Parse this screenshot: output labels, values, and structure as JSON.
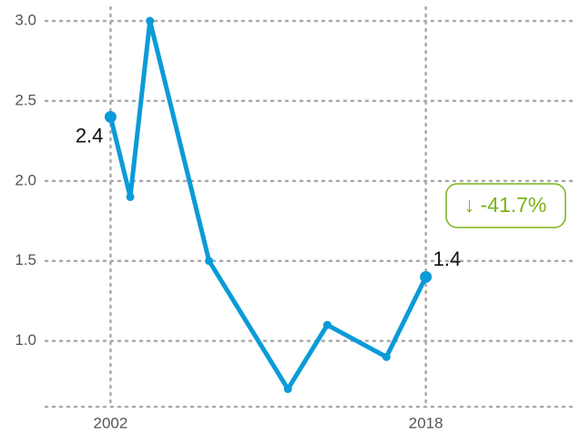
{
  "chart_data": {
    "type": "line",
    "x": [
      2002,
      2003,
      2004,
      2007,
      2011,
      2013,
      2016,
      2018
    ],
    "series": [
      {
        "name": null,
        "color": "#0b9bd8",
        "values": [
          2.4,
          1.9,
          3.0,
          1.5,
          0.7,
          1.1,
          0.9,
          1.4
        ]
      }
    ],
    "xlim": [
      1998.7,
      2025.5
    ],
    "xticks": [
      2002,
      2018
    ],
    "ylim": [
      0.6,
      3.0
    ],
    "yticks": [
      {
        "value": 1.0,
        "label": "1.0"
      },
      1.5,
      {
        "value": 2.0,
        "label": "2.0"
      },
      2.5,
      {
        "value": 3.0,
        "label": "3.0"
      }
    ],
    "grid": true,
    "annotation": "↓ -41.7%",
    "annotation_color": "#7ab317"
  }
}
